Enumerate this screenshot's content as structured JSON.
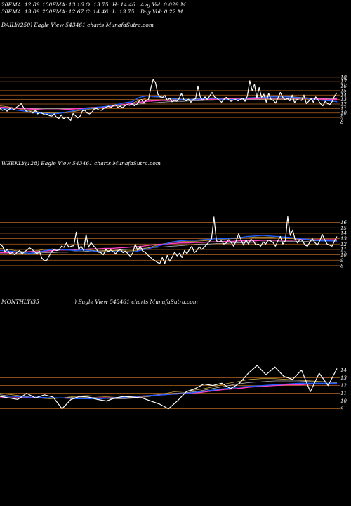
{
  "header": {
    "ema20": "20EMA: 12.89",
    "ema100": "100EMA: 13.16",
    "open": "O: 13.75",
    "high": "H: 14.46",
    "avg_vol": "Avg Vol: 0.029  M",
    "ema30": "30EMA: 13.09",
    "ema200": "200EMA: 12.67",
    "close": "C: 14.46",
    "low": "L: 13.75",
    "day_vol": "Day Vol: 0.22  M"
  },
  "colors": {
    "background": "#000000",
    "gridline": "#b5651d",
    "price": "#ffffff",
    "ema_short": "#1f5fff",
    "ema_mid": "#ff3fbf",
    "ema_long": "#b0b0b0",
    "ema_gold": "#c8a040"
  },
  "chart_data": [
    {
      "type": "line",
      "title": "DAILY(250) Eagle   View  543461 charts MunafaSutra.com",
      "yticks": [
        8,
        9,
        10,
        11,
        12,
        13,
        14,
        15,
        16,
        17,
        18
      ],
      "ylim": [
        7.6,
        18.6
      ],
      "series": [
        {
          "role": "price",
          "values": [
            11,
            10.6,
            10.8,
            10.4,
            10.9,
            11.2,
            10.7,
            11.3,
            11.6,
            12.1,
            11.2,
            10.5,
            10.2,
            10.3,
            10.0,
            10.6,
            9.8,
            10.2,
            9.9,
            9.6,
            9.7,
            9.4,
            9.3,
            9.8,
            9.0,
            8.8,
            9.6,
            8.7,
            9.1,
            8.9,
            8.3,
            9.9,
            9.4,
            8.9,
            9.3,
            10.5,
            10.6,
            10.0,
            9.8,
            10.2,
            10.9,
            11.0,
            10.7,
            10.6,
            11.0,
            11.3,
            11.5,
            11.2,
            11.6,
            11.8,
            11.3,
            11.5,
            11.2,
            11.6,
            11.9,
            11.7,
            12.1,
            11.6,
            11.9,
            12.6,
            13.0,
            12.2,
            12.8,
            13.0,
            15.5,
            17.5,
            16.8,
            14.2,
            13.6,
            13.5,
            13.9,
            12.8,
            13.3,
            12.5,
            12.8,
            12.6,
            13.2,
            14.4,
            13.0,
            12.7,
            13.1,
            12.4,
            13.0,
            13.2,
            16.0,
            13.6,
            12.8,
            13.6,
            13.0,
            13.8,
            14.6,
            13.6,
            13.3,
            12.9,
            12.4,
            13.0,
            13.5,
            13.0,
            12.6,
            12.9,
            13.0,
            12.7,
            13.0,
            13.3,
            12.6,
            13.8,
            17.2,
            15.0,
            16.4,
            13.4,
            15.7,
            13.5,
            14.2,
            12.4,
            14.4,
            13.0,
            12.8,
            12.2,
            13.4,
            14.6,
            13.5,
            12.9,
            13.3,
            12.7,
            14.0,
            12.3,
            13.0,
            12.9,
            12.8,
            14.0,
            12.1,
            12.6,
            13.2,
            12.4,
            13.6,
            12.9,
            12.1,
            11.6,
            12.6,
            12.1,
            11.9,
            12.6,
            13.8,
            14.5
          ]
        },
        {
          "role": "ema_short",
          "values": [
            11.0,
            10.9,
            10.7,
            10.5,
            10.2,
            10.0,
            9.9,
            9.8,
            9.9,
            10.2,
            10.5,
            10.8,
            11.0,
            11.2,
            11.4,
            11.6,
            11.9,
            12.3,
            12.5,
            13.5,
            13.8,
            13.7,
            13.6,
            13.2,
            13.1,
            13.0,
            13.0,
            13.1,
            13.2,
            13.3,
            13.1,
            13.0,
            13.0,
            13.1,
            13.4,
            13.4,
            13.5,
            13.6,
            13.6,
            13.6,
            13.5,
            13.4,
            13.2,
            13.0,
            12.8,
            12.7,
            12.5
          ]
        },
        {
          "role": "ema_mid",
          "values": [
            11.3,
            11.2,
            11.1,
            11.0,
            10.9,
            10.8,
            10.7,
            10.7,
            10.7,
            10.8,
            10.9,
            11.0,
            11.1,
            11.2,
            11.3,
            11.5,
            11.7,
            11.9,
            12.1,
            12.4,
            12.6,
            12.7,
            12.8,
            12.8,
            12.9,
            12.9,
            13.0,
            13.0,
            13.1,
            13.1,
            13.1,
            13.1,
            13.1,
            13.2,
            13.2,
            13.2,
            13.3,
            13.3,
            13.3,
            13.3,
            13.3,
            13.3,
            13.2,
            13.1,
            13.1,
            13.0,
            13.1
          ]
        },
        {
          "role": "ema_long",
          "values": [
            11.2,
            11.2,
            11.1,
            11.1,
            11.0,
            11.0,
            11.0,
            11.0,
            11.0,
            11.0,
            11.1,
            11.1,
            11.2,
            11.3,
            11.4,
            11.5,
            11.6,
            11.7,
            11.9,
            12.0,
            12.2,
            12.3,
            12.4,
            12.5,
            12.6,
            12.6,
            12.7,
            12.7,
            12.8,
            12.8,
            12.9,
            12.9,
            12.9,
            13.0,
            13.0,
            13.0,
            13.1,
            13.1,
            13.1,
            13.1,
            13.1,
            13.2,
            13.2,
            13.2,
            13.2,
            13.2,
            13.2
          ]
        },
        {
          "role": "ema_gold",
          "values": [
            11.6,
            11.4,
            11.1,
            10.8,
            10.5,
            10.3,
            10.1,
            10.0,
            10.0,
            10.1,
            10.3,
            10.6,
            10.8,
            11.0,
            11.2,
            11.4,
            11.6,
            11.9,
            12.2,
            12.8,
            13.3,
            13.4,
            13.4,
            13.2,
            13.2,
            13.1,
            13.1,
            13.2,
            13.3,
            13.4,
            13.3,
            13.2,
            13.2,
            13.2,
            13.4,
            13.5,
            13.6,
            13.7,
            13.7,
            13.7,
            13.6,
            13.5,
            13.4,
            13.2,
            13.1,
            12.9,
            12.8
          ]
        }
      ]
    },
    {
      "type": "line",
      "title": "WEEKLY(128) Eagle   View  543461 charts MunafaSutra.com",
      "yticks": [
        8,
        9,
        10,
        11,
        12,
        13,
        14,
        15,
        16
      ],
      "ylim": [
        7.6,
        16.6
      ],
      "series": [
        {
          "role": "price",
          "values": [
            12.0,
            11.6,
            10.6,
            11.0,
            10.2,
            10.4,
            10.0,
            10.5,
            10.8,
            10.2,
            10.6,
            10.9,
            11.3,
            11.0,
            10.6,
            10.2,
            10.7,
            9.4,
            8.9,
            9.0,
            9.8,
            10.6,
            11.0,
            10.8,
            10.9,
            11.6,
            11.4,
            12.2,
            11.4,
            11.6,
            11.7,
            14.2,
            11.0,
            11.6,
            10.8,
            13.8,
            11.4,
            12.3,
            11.7,
            11.2,
            10.5,
            10.4,
            10.0,
            11.0,
            10.6,
            10.9,
            10.6,
            10.2,
            10.8,
            11.0,
            10.4,
            10.7,
            10.2,
            9.7,
            10.4,
            12.0,
            10.8,
            11.6,
            10.7,
            10.5,
            10.0,
            9.6,
            9.2,
            8.9,
            8.6,
            8.4,
            9.5,
            8.4,
            9.9,
            8.8,
            9.6,
            10.5,
            9.8,
            10.3,
            9.5,
            10.8,
            10.2,
            11.0,
            11.6,
            10.4,
            10.8,
            11.5,
            11.0,
            11.4,
            11.9,
            12.4,
            13.0,
            17.0,
            12.6,
            12.4,
            12.6,
            12.0,
            12.2,
            12.8,
            12.3,
            11.6,
            12.6,
            13.9,
            12.8,
            11.8,
            12.8,
            12.0,
            12.9,
            12.6,
            11.8,
            12.0,
            11.6,
            12.4,
            12.0,
            12.7,
            12.6,
            12.3,
            11.6,
            12.6,
            13.4,
            12.0,
            12.6,
            17.1,
            13.6,
            14.6,
            12.8,
            12.2,
            12.9,
            12.6,
            11.8,
            11.6,
            12.4,
            13.0,
            12.3,
            11.8,
            12.6,
            13.8,
            12.8,
            12.0,
            11.8,
            11.6,
            12.6,
            13.4
          ]
        },
        {
          "role": "ema_short",
          "values": [
            10.8,
            10.7,
            10.6,
            10.4,
            10.3,
            10.5,
            10.8,
            11.0,
            11.0,
            10.9,
            10.8,
            10.9,
            10.8,
            10.6,
            10.5,
            10.6,
            10.6,
            10.5,
            10.6,
            10.9,
            11.2,
            11.6,
            12.0,
            12.4,
            12.6,
            12.7,
            12.7,
            12.8,
            12.9,
            13.0,
            13.0,
            13.1,
            13.2,
            13.4,
            13.5,
            13.6,
            13.5,
            13.4,
            13.3,
            13.2,
            13.0,
            12.9,
            12.7,
            12.6,
            12.6,
            12.5
          ]
        },
        {
          "role": "ema_mid",
          "values": [
            10.4,
            10.4,
            10.5,
            10.5,
            10.6,
            10.6,
            10.7,
            10.8,
            10.9,
            10.9,
            11.0,
            11.0,
            11.1,
            11.1,
            11.2,
            11.2,
            11.3,
            11.4,
            11.5,
            11.6,
            11.8,
            11.9,
            12.0,
            12.1,
            12.2,
            12.2,
            12.3,
            12.3,
            12.4,
            12.4,
            12.5,
            12.5,
            12.6,
            12.6,
            12.6,
            12.7,
            12.7,
            12.7,
            12.7,
            12.7,
            12.8,
            12.8,
            12.8,
            12.8,
            12.8,
            12.8
          ]
        },
        {
          "role": "ema_long",
          "values": [
            10.2,
            10.2,
            10.2,
            10.3,
            10.3,
            10.3,
            10.4,
            10.4,
            10.5,
            10.5,
            10.6,
            10.6,
            10.7,
            10.7,
            10.8,
            10.8,
            10.9,
            11.0,
            11.1,
            11.2,
            11.3,
            11.4,
            11.5,
            11.6,
            11.7,
            11.8,
            11.9,
            12.0,
            12.0,
            12.1,
            12.1,
            12.2,
            12.2,
            12.3,
            12.3,
            12.4,
            12.4,
            12.4,
            12.5,
            12.5,
            12.5,
            12.5,
            12.6,
            12.6,
            12.6,
            12.6
          ]
        },
        {
          "role": "ema_gold",
          "values": [
            11.2,
            11.0,
            10.8,
            10.6,
            10.6,
            10.8,
            11.0,
            11.1,
            11.0,
            10.9,
            10.9,
            11.0,
            10.9,
            10.7,
            10.7,
            10.8,
            10.8,
            10.7,
            10.8,
            11.0,
            11.4,
            11.8,
            12.1,
            12.3,
            12.5,
            12.5,
            12.5,
            12.6,
            12.7,
            12.8,
            12.9,
            13.0,
            13.1,
            13.2,
            13.3,
            13.3,
            13.3,
            13.2,
            13.1,
            13.0,
            12.9,
            12.8,
            12.7,
            12.6,
            12.6,
            12.6
          ]
        }
      ]
    },
    {
      "type": "line",
      "title_left": "MONTHLY(35",
      "title_right": ") Eagle   View  543461 charts MunafaSutra.com",
      "yticks": [
        9,
        10,
        11,
        12,
        13,
        14
      ],
      "ylim": [
        8.6,
        14.6
      ],
      "series": [
        {
          "role": "price",
          "values": [
            10.6,
            10.4,
            10.2,
            11.0,
            10.4,
            10.8,
            10.5,
            9.0,
            10.2,
            10.6,
            10.5,
            10.2,
            10.0,
            10.4,
            10.6,
            10.5,
            10.4,
            10.0,
            9.6,
            9.0,
            10.0,
            11.2,
            11.6,
            12.2,
            12.0,
            12.3,
            11.6,
            12.3,
            13.6,
            14.6,
            13.4,
            14.4,
            13.2,
            12.8,
            14.0,
            11.2,
            13.6,
            12.0,
            14.2
          ]
        },
        {
          "role": "ema_short",
          "values": [
            10.6,
            10.6,
            10.5,
            10.5,
            10.4,
            10.4,
            10.3,
            10.3,
            10.3,
            10.4,
            10.5,
            10.6,
            10.7,
            10.8,
            10.9,
            11.0,
            11.2,
            11.4,
            11.6,
            11.8,
            11.9,
            12.0,
            12.1,
            12.2,
            12.3,
            12.3,
            12.3,
            12.3
          ]
        },
        {
          "role": "ema_mid",
          "values": [
            10.4,
            10.4,
            10.4,
            10.4,
            10.4,
            10.4,
            10.3,
            10.3,
            10.4,
            10.4,
            10.5,
            10.6,
            10.7,
            10.8,
            10.9,
            11.0,
            11.1,
            11.3,
            11.5,
            11.6,
            11.8,
            11.9,
            12.0,
            12.1,
            12.1,
            12.2,
            12.2,
            12.2
          ]
        },
        {
          "role": "ema_long",
          "values": [
            10.8,
            10.6,
            10.5,
            10.4,
            10.3,
            10.4,
            10.5,
            10.5,
            10.4,
            10.3,
            10.3,
            10.4,
            10.6,
            10.8,
            11.0,
            11.1,
            11.3,
            11.6,
            11.9,
            12.2,
            12.4,
            12.5,
            12.6,
            12.6,
            12.6,
            12.5,
            12.5,
            12.4
          ]
        },
        {
          "role": "ema_gold",
          "values": [
            11.0,
            10.8,
            10.6,
            10.4,
            10.3,
            10.4,
            10.6,
            10.7,
            10.6,
            10.5,
            10.4,
            10.5,
            10.7,
            10.9,
            11.2,
            11.3,
            11.5,
            11.8,
            12.2,
            12.5,
            12.8,
            12.9,
            12.9,
            12.8,
            12.7,
            12.6,
            12.5,
            12.4
          ]
        }
      ]
    }
  ]
}
